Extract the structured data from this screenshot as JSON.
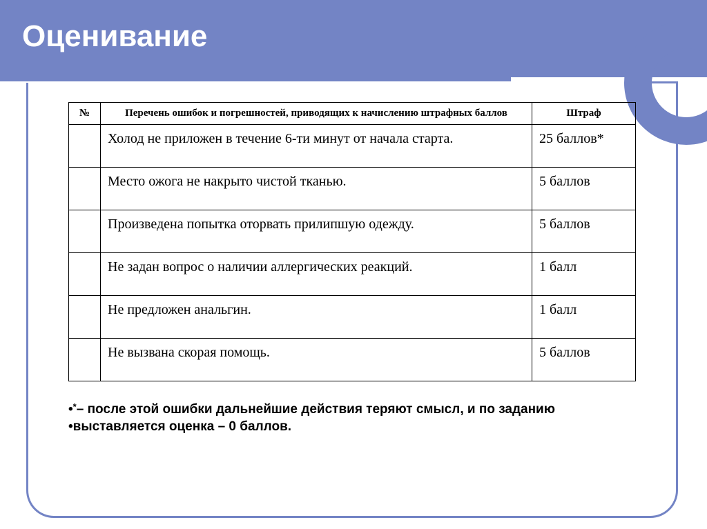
{
  "slide": {
    "title": "Оценивание",
    "accent_color": "#7384c5",
    "background_color": "#ffffff"
  },
  "table": {
    "columns": [
      {
        "label": "№",
        "width": 46
      },
      {
        "label": "Перечень ошибок и погрешностей, приводящих к начислению штрафных баллов",
        "width": null
      },
      {
        "label": "Штраф",
        "width": 150
      }
    ],
    "rows": [
      {
        "num": "",
        "error": "Холод не приложен в течение 6-ти минут от начала старта.",
        "penalty": "25 баллов*"
      },
      {
        "num": "",
        "error": "Место ожога не накрыто чистой тканью.",
        "penalty": "5 баллов"
      },
      {
        "num": "",
        "error": "Произведена попытка оторвать прилипшую одежду.",
        "penalty": "5 баллов"
      },
      {
        "num": "",
        "error": "Не задан вопрос о наличии аллергических реакций.",
        "penalty": "1 балл"
      },
      {
        "num": "",
        "error": "Не предложен анальгин.",
        "penalty": "1 балл"
      },
      {
        "num": "",
        "error": "Не вызвана скорая помощь.",
        "penalty": "5 баллов"
      }
    ]
  },
  "notes": {
    "bullet": "•",
    "line1_start": "*",
    "line1": "– после этой ошибки дальнейшие действия теряют смысл, и по заданию",
    "line2": "выставляется оценка – 0 баллов."
  }
}
